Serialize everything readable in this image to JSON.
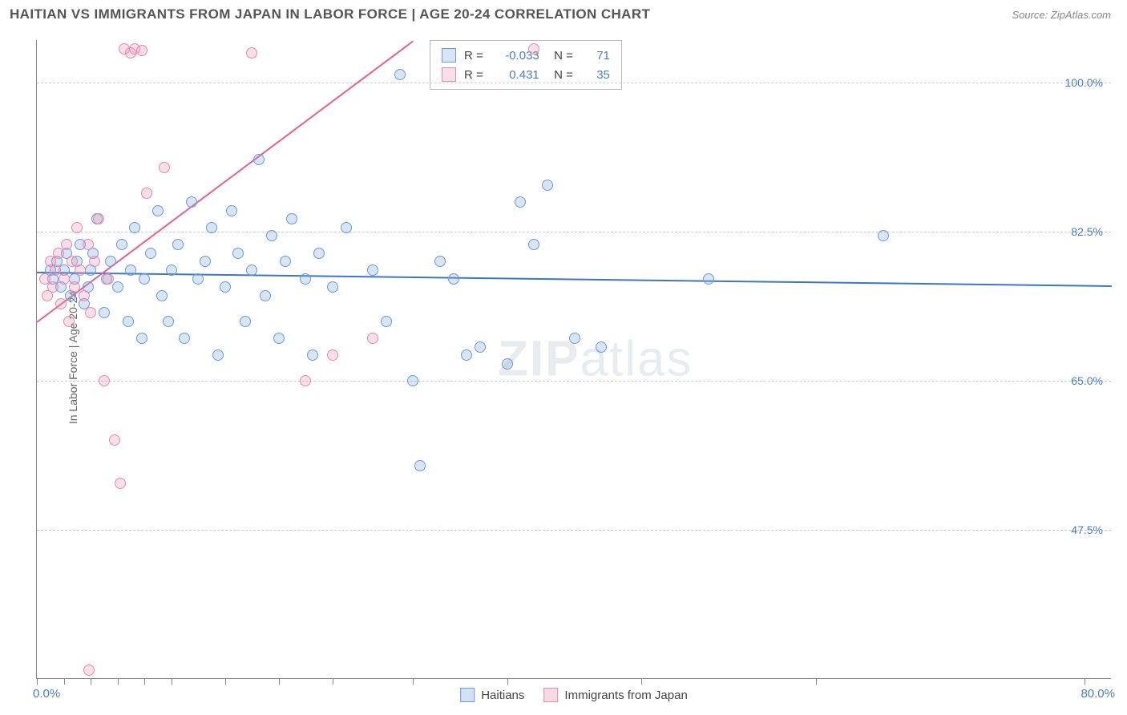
{
  "title": "HAITIAN VS IMMIGRANTS FROM JAPAN IN LABOR FORCE | AGE 20-24 CORRELATION CHART",
  "source": "Source: ZipAtlas.com",
  "ylabel": "In Labor Force | Age 20-24",
  "watermark_a": "ZIP",
  "watermark_b": "atlas",
  "chart": {
    "type": "scatter",
    "xlim": [
      0,
      80
    ],
    "ylim": [
      30,
      105
    ],
    "xaxis_labels": {
      "min": "0.0%",
      "max": "80.0%"
    },
    "xtick_positions": [
      0,
      2,
      4,
      6,
      8,
      10,
      14,
      18,
      22,
      28,
      35,
      45,
      58,
      78
    ],
    "grid_color": "#cccccc",
    "axis_color": "#888888",
    "background_color": "#ffffff",
    "tick_label_color": "#4a7cc4",
    "yticks": [
      {
        "v": 47.5,
        "label": "47.5%"
      },
      {
        "v": 65.0,
        "label": "65.0%"
      },
      {
        "v": 82.5,
        "label": "82.5%"
      },
      {
        "v": 100.0,
        "label": "100.0%"
      }
    ],
    "marker_radius": 7,
    "marker_stroke_width": 1.5,
    "series": [
      {
        "name": "Haitians",
        "fill": "rgba(130,170,220,0.30)",
        "stroke": "#6a9bd8",
        "line_color": "#3b78c4",
        "R": "-0.033",
        "N": "71",
        "trend": {
          "x1": 0,
          "y1": 77.8,
          "x2": 80,
          "y2": 76.2
        },
        "points": [
          [
            1,
            78
          ],
          [
            1.2,
            77
          ],
          [
            1.5,
            79
          ],
          [
            1.8,
            76
          ],
          [
            2,
            78
          ],
          [
            2.2,
            80
          ],
          [
            2.5,
            75
          ],
          [
            2.8,
            77
          ],
          [
            3,
            79
          ],
          [
            3.2,
            81
          ],
          [
            3.5,
            74
          ],
          [
            3.8,
            76
          ],
          [
            4,
            78
          ],
          [
            4.2,
            80
          ],
          [
            4.5,
            84
          ],
          [
            5,
            73
          ],
          [
            5.2,
            77
          ],
          [
            5.5,
            79
          ],
          [
            6,
            76
          ],
          [
            6.3,
            81
          ],
          [
            6.8,
            72
          ],
          [
            7,
            78
          ],
          [
            7.3,
            83
          ],
          [
            7.8,
            70
          ],
          [
            8,
            77
          ],
          [
            8.5,
            80
          ],
          [
            9,
            85
          ],
          [
            9.3,
            75
          ],
          [
            9.8,
            72
          ],
          [
            10,
            78
          ],
          [
            10.5,
            81
          ],
          [
            11,
            70
          ],
          [
            11.5,
            86
          ],
          [
            12,
            77
          ],
          [
            12.5,
            79
          ],
          [
            13,
            83
          ],
          [
            13.5,
            68
          ],
          [
            14,
            76
          ],
          [
            14.5,
            85
          ],
          [
            15,
            80
          ],
          [
            15.5,
            72
          ],
          [
            16,
            78
          ],
          [
            16.5,
            91
          ],
          [
            17,
            75
          ],
          [
            17.5,
            82
          ],
          [
            18,
            70
          ],
          [
            18.5,
            79
          ],
          [
            19,
            84
          ],
          [
            20,
            77
          ],
          [
            20.5,
            68
          ],
          [
            21,
            80
          ],
          [
            22,
            76
          ],
          [
            23,
            83
          ],
          [
            25,
            78
          ],
          [
            26,
            72
          ],
          [
            27,
            101
          ],
          [
            28,
            65
          ],
          [
            30,
            79
          ],
          [
            31,
            77
          ],
          [
            32,
            68
          ],
          [
            33,
            69
          ],
          [
            35,
            67
          ],
          [
            36,
            86
          ],
          [
            37,
            81
          ],
          [
            38,
            88
          ],
          [
            40,
            70
          ],
          [
            42,
            69
          ],
          [
            28.5,
            55
          ],
          [
            63,
            82
          ],
          [
            50,
            77
          ]
        ]
      },
      {
        "name": "Immigrants from Japan",
        "fill": "rgba(235,150,180,0.30)",
        "stroke": "#e68ab0",
        "line_color": "#e85f92",
        "R": "0.431",
        "N": "35",
        "trend": {
          "x1": 0,
          "y1": 72,
          "x2": 28,
          "y2": 105
        },
        "points": [
          [
            0.6,
            77
          ],
          [
            0.8,
            75
          ],
          [
            1,
            79
          ],
          [
            1.2,
            76
          ],
          [
            1.4,
            78
          ],
          [
            1.6,
            80
          ],
          [
            1.8,
            74
          ],
          [
            2,
            77
          ],
          [
            2.2,
            81
          ],
          [
            2.4,
            72
          ],
          [
            2.6,
            79
          ],
          [
            2.8,
            76
          ],
          [
            3,
            83
          ],
          [
            3.2,
            78
          ],
          [
            3.5,
            75
          ],
          [
            3.8,
            81
          ],
          [
            4,
            73
          ],
          [
            4.3,
            79
          ],
          [
            4.6,
            84
          ],
          [
            5,
            65
          ],
          [
            5.3,
            77
          ],
          [
            5.8,
            58
          ],
          [
            6.2,
            53
          ],
          [
            6.5,
            104
          ],
          [
            7,
            103.5
          ],
          [
            7.3,
            104
          ],
          [
            7.8,
            103.8
          ],
          [
            8.2,
            87
          ],
          [
            9.5,
            90
          ],
          [
            16,
            103.5
          ],
          [
            3.9,
            31
          ],
          [
            37,
            104
          ],
          [
            25,
            70
          ],
          [
            22,
            68
          ],
          [
            20,
            65
          ]
        ]
      }
    ]
  },
  "bottom_legend": [
    {
      "swatch_fill": "rgba(130,170,220,0.35)",
      "swatch_stroke": "#6a9bd8",
      "label": "Haitians"
    },
    {
      "swatch_fill": "rgba(235,150,180,0.35)",
      "swatch_stroke": "#e68ab0",
      "label": "Immigrants from Japan"
    }
  ]
}
